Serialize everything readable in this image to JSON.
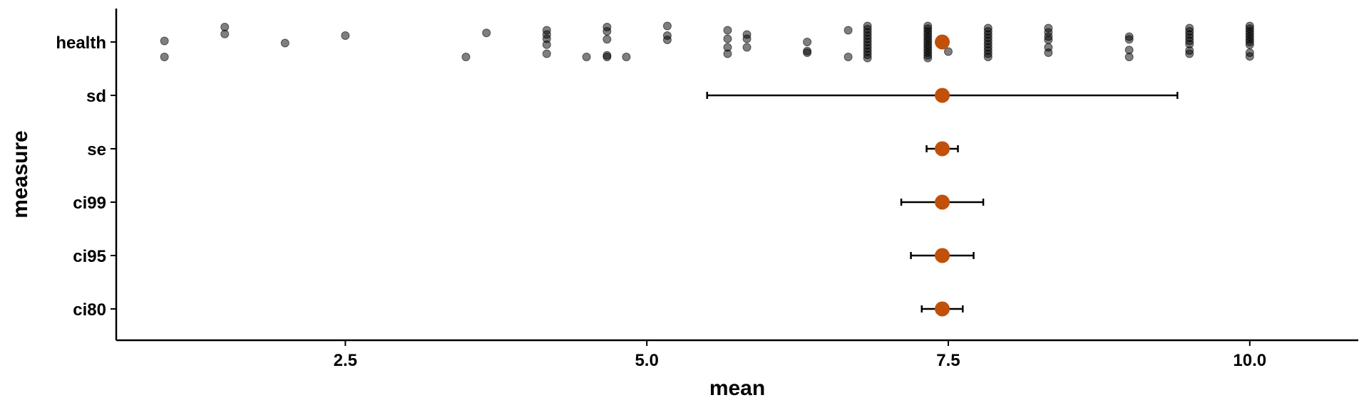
{
  "chart_data": {
    "type": "scatter",
    "title": "",
    "xlabel": "mean",
    "ylabel": "measure",
    "xlim": [
      0.6,
      10.9
    ],
    "x_ticks": [
      "2.5",
      "5.0",
      "7.5",
      "10.0"
    ],
    "x_tick_values": [
      2.5,
      5.0,
      7.5,
      10.0
    ],
    "categories": [
      "health",
      "sd",
      "se",
      "ci99",
      "ci95",
      "ci80"
    ],
    "mean": 7.45,
    "mean_color": "#c0500a",
    "raw_color": "#000000",
    "grid": false,
    "legend": "none",
    "intervals": [
      {
        "category": "sd",
        "mean": 7.45,
        "low": 5.5,
        "high": 9.4
      },
      {
        "category": "se",
        "mean": 7.45,
        "low": 7.32,
        "high": 7.58
      },
      {
        "category": "ci99",
        "mean": 7.45,
        "low": 7.11,
        "high": 7.79
      },
      {
        "category": "ci95",
        "mean": 7.45,
        "low": 7.19,
        "high": 7.71
      },
      {
        "category": "ci80",
        "mean": 7.45,
        "low": 7.28,
        "high": 7.62
      }
    ],
    "health_points": [
      [
        1.0,
        0.02
      ],
      [
        1.0,
        -0.28
      ],
      [
        1.5,
        0.28
      ],
      [
        1.5,
        0.15
      ],
      [
        2.0,
        -0.02
      ],
      [
        2.5,
        0.12
      ],
      [
        3.5,
        -0.28
      ],
      [
        3.67,
        0.17
      ],
      [
        4.17,
        0.22
      ],
      [
        4.17,
        0.14
      ],
      [
        4.17,
        0.06
      ],
      [
        4.17,
        -0.05
      ],
      [
        4.17,
        -0.22
      ],
      [
        4.5,
        -0.28
      ],
      [
        4.67,
        0.28
      ],
      [
        4.67,
        0.2
      ],
      [
        4.67,
        0.05
      ],
      [
        4.67,
        -0.25
      ],
      [
        4.67,
        -0.28
      ],
      [
        4.83,
        -0.28
      ],
      [
        5.17,
        0.3
      ],
      [
        5.17,
        0.12
      ],
      [
        5.17,
        0.04
      ],
      [
        5.67,
        0.22
      ],
      [
        5.67,
        0.06
      ],
      [
        5.67,
        -0.1
      ],
      [
        5.67,
        -0.22
      ],
      [
        5.83,
        0.14
      ],
      [
        5.83,
        0.06
      ],
      [
        5.83,
        -0.1
      ],
      [
        6.33,
        0.0
      ],
      [
        6.33,
        -0.17
      ],
      [
        6.33,
        -0.2
      ],
      [
        6.67,
        0.22
      ],
      [
        6.67,
        -0.28
      ],
      [
        6.83,
        0.3
      ],
      [
        6.83,
        0.24
      ],
      [
        6.83,
        0.18
      ],
      [
        6.83,
        0.12
      ],
      [
        6.83,
        0.06
      ],
      [
        6.83,
        0.0
      ],
      [
        6.83,
        -0.06
      ],
      [
        6.83,
        -0.12
      ],
      [
        6.83,
        -0.18
      ],
      [
        6.83,
        -0.24
      ],
      [
        6.83,
        -0.3
      ],
      [
        7.33,
        0.3
      ],
      [
        7.33,
        0.25
      ],
      [
        7.33,
        0.2
      ],
      [
        7.33,
        0.15
      ],
      [
        7.33,
        0.1
      ],
      [
        7.33,
        0.05
      ],
      [
        7.33,
        0.0
      ],
      [
        7.33,
        -0.05
      ],
      [
        7.33,
        -0.1
      ],
      [
        7.33,
        -0.15
      ],
      [
        7.33,
        -0.2
      ],
      [
        7.33,
        -0.25
      ],
      [
        7.33,
        -0.3
      ],
      [
        7.5,
        -0.18
      ],
      [
        7.83,
        0.26
      ],
      [
        7.83,
        0.2
      ],
      [
        7.83,
        0.14
      ],
      [
        7.83,
        0.08
      ],
      [
        7.83,
        0.02
      ],
      [
        7.83,
        -0.04
      ],
      [
        7.83,
        -0.1
      ],
      [
        7.83,
        -0.16
      ],
      [
        7.83,
        -0.22
      ],
      [
        7.83,
        -0.28
      ],
      [
        8.33,
        0.26
      ],
      [
        8.33,
        0.18
      ],
      [
        8.33,
        0.1
      ],
      [
        8.33,
        0.04
      ],
      [
        8.33,
        -0.1
      ],
      [
        8.33,
        -0.2
      ],
      [
        9.0,
        0.1
      ],
      [
        9.0,
        0.05
      ],
      [
        9.0,
        -0.15
      ],
      [
        9.0,
        -0.28
      ],
      [
        9.5,
        0.26
      ],
      [
        9.5,
        0.2
      ],
      [
        9.5,
        0.14
      ],
      [
        9.5,
        0.08
      ],
      [
        9.5,
        0.02
      ],
      [
        9.5,
        -0.04
      ],
      [
        9.5,
        -0.16
      ],
      [
        9.5,
        -0.22
      ],
      [
        10.0,
        0.3
      ],
      [
        10.0,
        0.25
      ],
      [
        10.0,
        0.2
      ],
      [
        10.0,
        0.15
      ],
      [
        10.0,
        0.1
      ],
      [
        10.0,
        0.05
      ],
      [
        10.0,
        0.0
      ],
      [
        10.0,
        -0.05
      ],
      [
        10.0,
        -0.2
      ],
      [
        10.0,
        -0.27
      ]
    ]
  }
}
